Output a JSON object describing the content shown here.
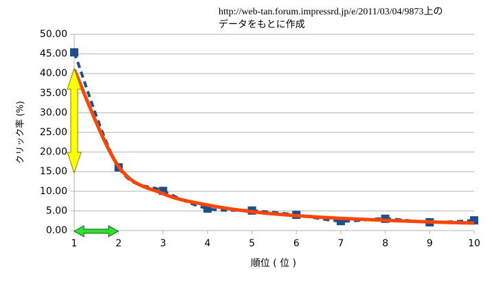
{
  "chart_data": {
    "type": "line",
    "annotation": [
      "http://web-tan.forum.impressrd.jp/e/2011/03/04/9873上の",
      "データをもとに作成"
    ],
    "x_label": "順位 ( 位 )",
    "y_label": "クリック率 (%)",
    "x": [
      1,
      2,
      3,
      4,
      5,
      6,
      7,
      8,
      9,
      10
    ],
    "series": [
      {
        "color": "#1f4e8c",
        "dashed": true,
        "markers": true,
        "values": [
          45.4,
          16.1,
          10.1,
          5.6,
          5.1,
          4.0,
          2.4,
          3.0,
          2.1,
          2.6
        ]
      },
      {
        "color": "#ff4500",
        "dashed": false,
        "markers": false,
        "values": [
          41.0,
          16.3,
          9.4,
          6.5,
          4.8,
          3.8,
          3.1,
          2.6,
          2.2,
          1.9
        ]
      }
    ],
    "xlim": [
      1,
      10
    ],
    "xticks": [
      1,
      2,
      3,
      4,
      5,
      6,
      7,
      8,
      9,
      10
    ],
    "ylim": [
      0,
      50
    ],
    "yticks": [
      {
        "value": 0,
        "label": "0.00"
      },
      {
        "value": 5,
        "label": "5.00"
      },
      {
        "value": 10,
        "label": "10.00"
      },
      {
        "value": 15,
        "label": "15.00"
      },
      {
        "value": 20,
        "label": "20.00"
      },
      {
        "value": 25,
        "label": "25.00"
      },
      {
        "value": 30,
        "label": "30.00"
      },
      {
        "value": 35,
        "label": "35.00"
      },
      {
        "value": 40,
        "label": "40.00"
      },
      {
        "value": 45,
        "label": "45.00"
      },
      {
        "value": 50,
        "label": "50.00"
      }
    ],
    "grid": true
  }
}
